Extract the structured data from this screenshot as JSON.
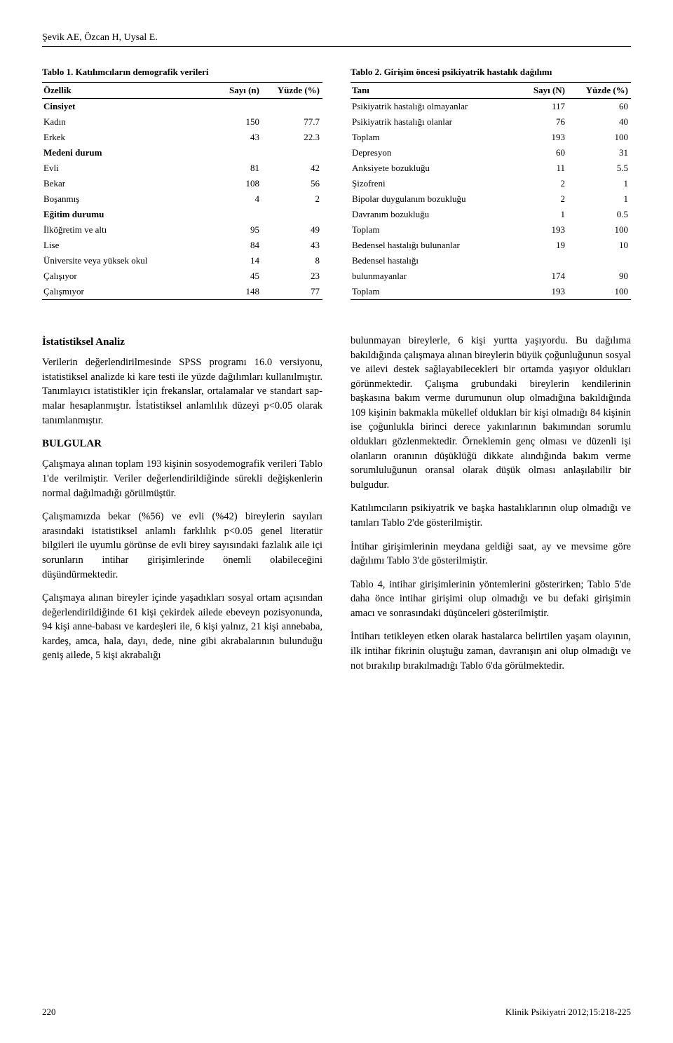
{
  "header": {
    "authors": "Şevik AE, Özcan H, Uysal E."
  },
  "table1": {
    "title": "Tablo 1. Katılımcıların demografik verileri",
    "columns": [
      "Özellik",
      "Sayı (n)",
      "Yüzde (%)"
    ],
    "rows": [
      {
        "label": "Cinsiyet",
        "n": "",
        "p": "",
        "section": true
      },
      {
        "label": "Kadın",
        "n": "150",
        "p": "77.7"
      },
      {
        "label": "Erkek",
        "n": "43",
        "p": "22.3"
      },
      {
        "label": "Medeni durum",
        "n": "",
        "p": "",
        "section": true
      },
      {
        "label": "Evli",
        "n": "81",
        "p": "42"
      },
      {
        "label": "Bekar",
        "n": "108",
        "p": "56"
      },
      {
        "label": "Boşanmış",
        "n": "4",
        "p": "2"
      },
      {
        "label": "Eğitim durumu",
        "n": "",
        "p": "",
        "section": true
      },
      {
        "label": "İlköğretim ve altı",
        "n": "95",
        "p": "49"
      },
      {
        "label": "Lise",
        "n": "84",
        "p": "43"
      },
      {
        "label": "Üniversite veya yüksek okul",
        "n": "14",
        "p": "8"
      },
      {
        "label": "Çalışıyor",
        "n": "45",
        "p": "23"
      },
      {
        "label": "Çalışmıyor",
        "n": "148",
        "p": "77"
      }
    ]
  },
  "table2": {
    "title": "Tablo 2. Girişim öncesi psikiyatrik hastalık dağılımı",
    "columns": [
      "Tanı",
      "Sayı (N)",
      "Yüzde (%)"
    ],
    "rows": [
      {
        "label": "Psikiyatrik hastalığı olmayanlar",
        "n": "117",
        "p": "60"
      },
      {
        "label": "Psikiyatrik hastalığı olanlar",
        "n": "76",
        "p": "40"
      },
      {
        "label": "Toplam",
        "n": "193",
        "p": "100"
      },
      {
        "label": "Depresyon",
        "n": "60",
        "p": "31"
      },
      {
        "label": "Anksiyete bozukluğu",
        "n": "11",
        "p": "5.5"
      },
      {
        "label": "Şizofreni",
        "n": "2",
        "p": "1"
      },
      {
        "label": "Bipolar duygulanım bozukluğu",
        "n": "2",
        "p": "1"
      },
      {
        "label": "Davranım bozukluğu",
        "n": "1",
        "p": "0.5"
      },
      {
        "label": "Toplam",
        "n": "193",
        "p": "100"
      },
      {
        "label": "Bedensel hastalığı bulunanlar",
        "n": "19",
        "p": "10"
      },
      {
        "label": "Bedensel hastalığı",
        "n": "",
        "p": ""
      },
      {
        "label": "bulunmayanlar",
        "n": "174",
        "p": "90"
      },
      {
        "label": "Toplam",
        "n": "193",
        "p": "100"
      }
    ]
  },
  "body": {
    "left": {
      "h1": "İstatistiksel Analiz",
      "p1": "Verilerin değerlendirilmesinde SPSS programı 16.0 versiyonu, istatistiksel analizde ki kare testi ile yüzde dağılımları kullanılmıştır. Tanımlayıcı istatis­tikler için frekanslar, ortalamalar ve standart sap­malar hesaplanmıştır. İstatistiksel anlamlılık düzeyi p<0.05 olarak tanımlanmıştır.",
      "h2": "BULGULAR",
      "p2": "Çalışmaya alınan toplam 193 kişinin sosyode­mografik verileri Tablo 1'de verilmiştir. Veriler değerlendirildiğinde sürekli değişkenlerin normal dağılmadığı görülmüştür.",
      "p3": "Çalışmamızda bekar (%56) ve evli (%42) bireylerin sayıları arasındaki istatistiksel anlamlı farklılık p<0.05 genel literatür bilgileri ile uyumlu görünse de evli birey sayısındaki fazlalık aile içi sorunların intihar girişimlerinde önemli olabileceğini düşündürmektedir.",
      "p4": "Çalışmaya alınan bireyler içinde yaşadıkları sosyal ortam açısından değerlendirildiğinde 61 kişi çekir­dek ailede ebeveyn pozisyonunda, 94 kişi anne-babası ve kardeşleri ile, 6 kişi yalnız, 21 kişi anneba­ba, kardeş, amca, hala, dayı, dede, nine gibi akra­balarının bulunduğu geniş ailede, 5 kişi akrabalığı"
    },
    "right": {
      "p1": "bulunmayan bireylerle, 6 kişi yurtta yaşıyordu. Bu dağılıma bakıldığında çalışmaya alınan bireylerin büyük çoğunluğunun sosyal ve ailevi destek sağlayabilecekleri bir ortamda yaşıyor oldukları görünmektedir. Çalışma grubundaki bireylerin kendilerinin başkasına bakım verme durumunun olup olmadığına bakıldığında 109 kişinin bakmakla mükellef oldukları bir kişi olmadığı 84 kişinin ise çoğunlukla birinci derece yakınlarının bakımından sorumlu oldukları gözlenmektedir. Örneklemin genç olması ve düzenli işi olanların oranının düşük­lüğü dikkate alındığında bakım verme sorumlu­luğunun oransal olarak düşük olması anlaşılabilir bir bulgudur.",
      "p2": "Katılımcıların psikiyatrik ve başka hastalıklarının olup olmadığı ve tanıları Tablo 2'de gösterilmiştir.",
      "p3": "İntihar girişimlerinin meydana geldiği saat, ay ve mevsime göre dağılımı Tablo 3'de gösterilmiştir.",
      "p4": "Tablo 4, intihar girişimlerinin yöntemlerini gös­terirken; Tablo 5'de daha önce intihar girişimi olup olmadığı ve bu defaki girişimin amacı ve sonrasın­daki düşünceleri gösterilmiştir.",
      "p5": "İntiharı tetikleyen etken olarak hastalarca belir­tilen yaşam olayının, ilk intihar fikrinin oluştuğu zaman, davranışın ani olup olmadığı ve not bırakılıp bırakılmadığı Tablo 6'da görülmektedir."
    }
  },
  "footer": {
    "page": "220",
    "journal": "Klinik Psikiyatri 2012;15:218-225"
  },
  "style": {
    "page_bg": "#ffffff",
    "text_color": "#000000",
    "rule_color": "#000000",
    "body_fontsize": 14.5,
    "table_fontsize": 13,
    "title_fontsize": 13,
    "line_height": 1.42,
    "col_widths_t1": [
      "62%",
      "19%",
      "19%"
    ],
    "col_widths_t2": [
      "60%",
      "20%",
      "20%"
    ]
  }
}
